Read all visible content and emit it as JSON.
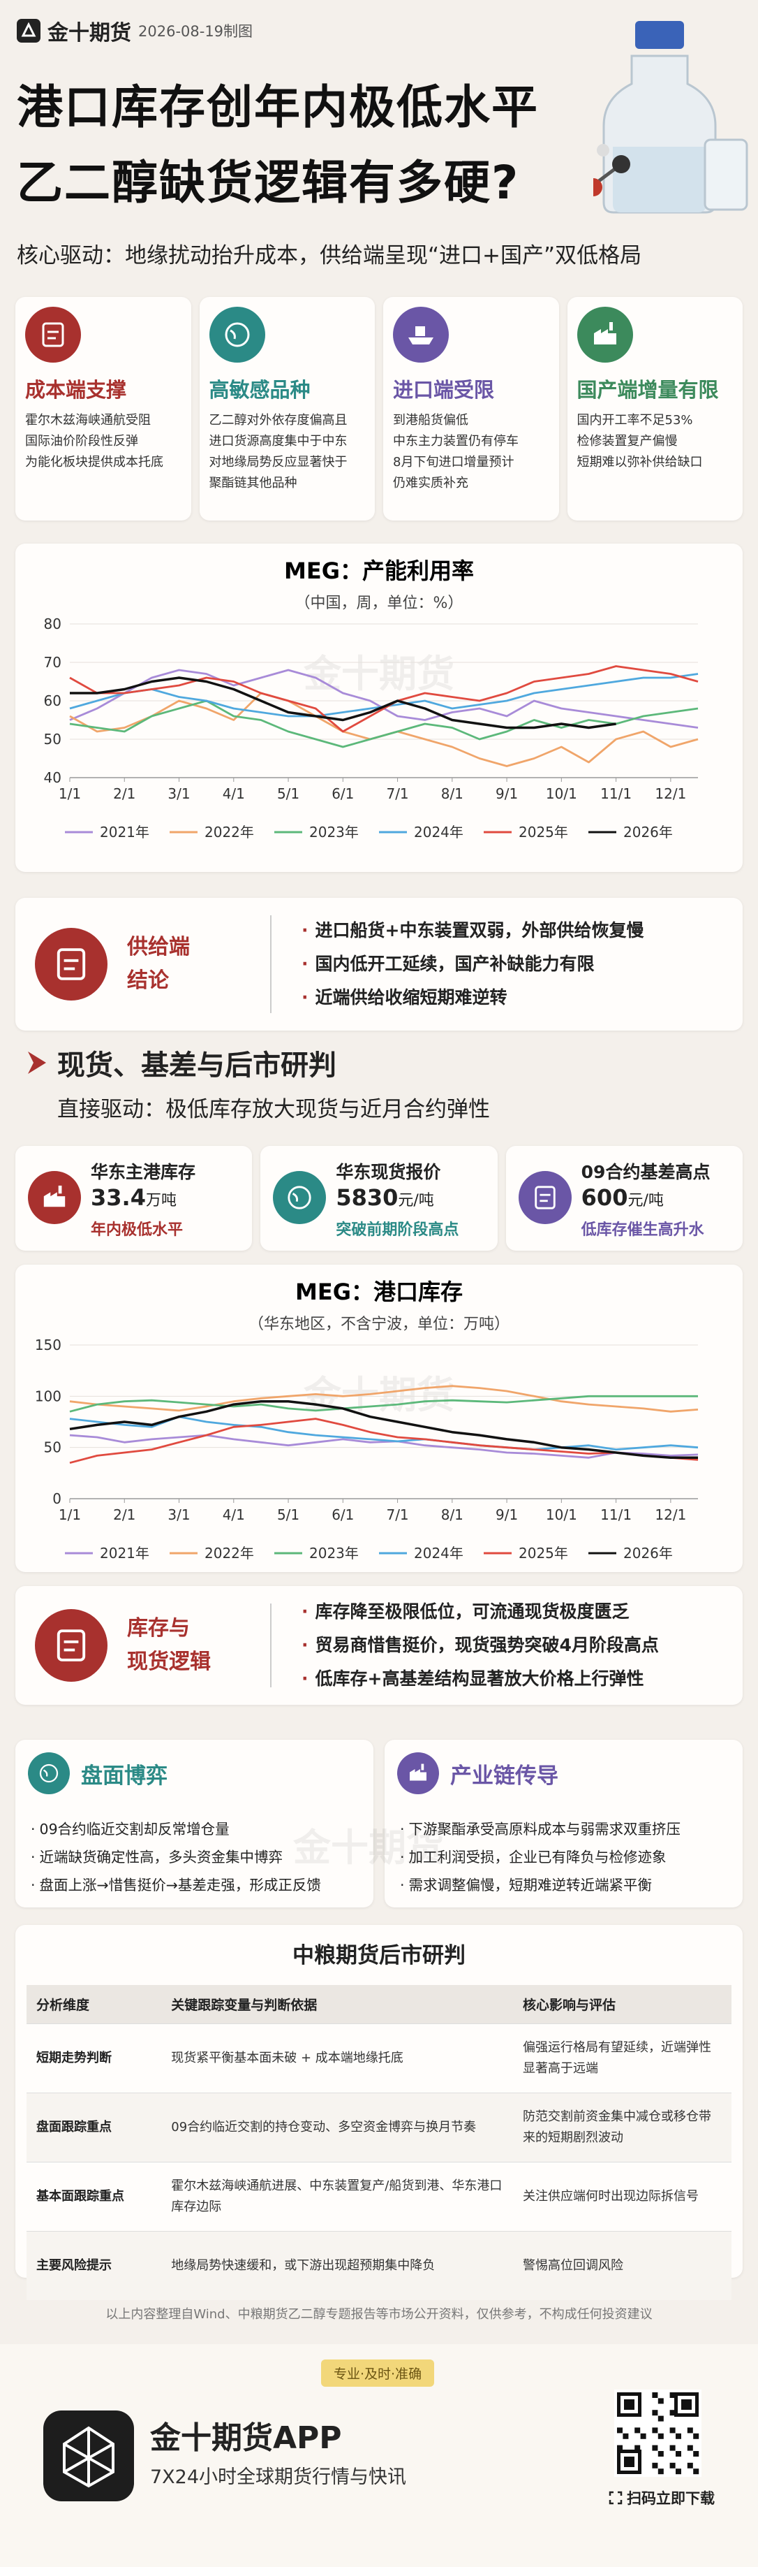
{
  "header": {
    "brand": "金十期货",
    "date": "2026-08-19制图",
    "title_lines": [
      "港口库存创年内极低水平",
      "乙二醇缺货逻辑有多硬?"
    ],
    "subtitle": "核心驱动：地缘扰动抬升成本，供给端呈现“进口+国产”双低格局"
  },
  "cards": [
    {
      "title": "成本端支撑",
      "color": "#a8312e",
      "lines": [
        "霍尔木兹海峡通航受阻",
        "国际油价阶段性反弹",
        "为能化板块提供成本托底"
      ]
    },
    {
      "title": "高敏感品种",
      "color": "#2b8a86",
      "lines": [
        "乙二醇对外依存度偏高且",
        "进口货源高度集中于中东",
        "对地缘局势反应显著快于",
        "聚酯链其他品种"
      ]
    },
    {
      "title": "进口端受限",
      "color": "#6a56a6",
      "lines": [
        "到港船货偏低",
        "中东主力装置仍有停车",
        "8月下旬进口增量预计",
        "仍难实质补充"
      ]
    },
    {
      "title": "国产端增量有限",
      "color": "#3c8a5c",
      "lines": [
        "国内开工率不足53%",
        "检修装置复产偏慢",
        "短期难以弥补供给缺口"
      ]
    }
  ],
  "watermark": "金十期货",
  "chart_data": [
    {
      "type": "line",
      "title": "MEG：产能利用率",
      "subtitle": "（中国，周，单位：%）",
      "categories": [
        "1/1",
        null,
        "2/1",
        null,
        "3/1",
        null,
        "4/1",
        null,
        "5/1",
        null,
        "6/1",
        null,
        "7/1",
        null,
        "8/1",
        null,
        "9/1",
        null,
        "10/1",
        null,
        "11/1",
        null,
        "12/1",
        null
      ],
      "ylim": [
        40,
        80
      ],
      "yticks": [
        40,
        50,
        60,
        70,
        80
      ],
      "grid": true,
      "legend": "bottom",
      "series": [
        {
          "name": "2021年",
          "color": "#a88bd8",
          "values": [
            55,
            58,
            62,
            66,
            68,
            67,
            64,
            66,
            68,
            66,
            62,
            60,
            56,
            55,
            57,
            58,
            56,
            60,
            58,
            57,
            56,
            55,
            54,
            53
          ]
        },
        {
          "name": "2022年",
          "color": "#f0a56a",
          "values": [
            56,
            52,
            53,
            56,
            60,
            58,
            55,
            62,
            60,
            56,
            52,
            50,
            52,
            50,
            48,
            45,
            43,
            45,
            48,
            44,
            50,
            52,
            48,
            50
          ]
        },
        {
          "name": "2023年",
          "color": "#5cb87a",
          "values": [
            54,
            53,
            52,
            56,
            58,
            60,
            56,
            55,
            52,
            50,
            48,
            50,
            52,
            54,
            53,
            50,
            52,
            55,
            53,
            55,
            54,
            56,
            57,
            58
          ]
        },
        {
          "name": "2024年",
          "color": "#4fa8de",
          "values": [
            58,
            60,
            62,
            63,
            61,
            60,
            58,
            57,
            56,
            56,
            57,
            58,
            59,
            60,
            58,
            59,
            60,
            62,
            63,
            64,
            65,
            66,
            66,
            67
          ]
        },
        {
          "name": "2025年",
          "color": "#e04a3f",
          "values": [
            66,
            62,
            62,
            63,
            64,
            66,
            65,
            62,
            60,
            58,
            52,
            56,
            60,
            62,
            61,
            60,
            62,
            65,
            66,
            67,
            69,
            68,
            67,
            65
          ]
        },
        {
          "name": "2026年",
          "color": "#111111",
          "values": [
            62,
            62,
            63,
            65,
            66,
            65,
            63,
            60,
            57,
            56,
            55,
            57,
            60,
            58,
            55,
            54,
            53,
            53,
            54,
            53,
            54,
            null,
            null,
            null
          ]
        }
      ]
    },
    {
      "type": "line",
      "title": "MEG：港口库存",
      "subtitle": "（华东地区，不含宁波，单位：万吨）",
      "categories": [
        "1/1",
        null,
        "2/1",
        null,
        "3/1",
        null,
        "4/1",
        null,
        "5/1",
        null,
        "6/1",
        null,
        "7/1",
        null,
        "8/1",
        null,
        "9/1",
        null,
        "10/1",
        null,
        "11/1",
        null,
        "12/1",
        null
      ],
      "ylim": [
        0,
        150
      ],
      "yticks": [
        0,
        50,
        100,
        150
      ],
      "grid": true,
      "legend": "bottom",
      "series": [
        {
          "name": "2021年",
          "color": "#a88bd8",
          "values": [
            62,
            60,
            55,
            58,
            60,
            62,
            58,
            55,
            52,
            55,
            58,
            55,
            56,
            52,
            50,
            48,
            45,
            44,
            42,
            40,
            45,
            44,
            42,
            43
          ]
        },
        {
          "name": "2022年",
          "color": "#f0a56a",
          "values": [
            95,
            92,
            90,
            88,
            86,
            90,
            95,
            98,
            100,
            102,
            100,
            102,
            105,
            108,
            110,
            108,
            105,
            100,
            95,
            92,
            90,
            88,
            85,
            87
          ]
        },
        {
          "name": "2023年",
          "color": "#5cb87a",
          "values": [
            85,
            92,
            95,
            96,
            94,
            92,
            90,
            92,
            88,
            86,
            88,
            90,
            92,
            95,
            96,
            95,
            94,
            96,
            98,
            100,
            100,
            100,
            100,
            100
          ]
        },
        {
          "name": "2024年",
          "color": "#4fa8de",
          "values": [
            78,
            75,
            72,
            70,
            80,
            75,
            72,
            70,
            65,
            62,
            60,
            58,
            56,
            58,
            55,
            52,
            50,
            48,
            50,
            52,
            48,
            50,
            52,
            50
          ]
        },
        {
          "name": "2025年",
          "color": "#e04a3f",
          "values": [
            35,
            42,
            45,
            48,
            55,
            62,
            70,
            72,
            75,
            78,
            72,
            65,
            60,
            58,
            55,
            52,
            50,
            48,
            46,
            44,
            45,
            42,
            40,
            38
          ]
        },
        {
          "name": "2026年",
          "color": "#111111",
          "values": [
            68,
            72,
            75,
            72,
            80,
            85,
            92,
            95,
            95,
            92,
            88,
            80,
            75,
            70,
            65,
            62,
            58,
            55,
            50,
            48,
            45,
            42,
            40,
            40
          ]
        }
      ]
    }
  ],
  "supply_conclusion": {
    "label_lines": [
      "供给端",
      "结论"
    ],
    "bullets": [
      "进口船货+中东装置双弱，外部供给恢复慢",
      "国内低开工延续，国产补缺能力有限",
      "近端供给收缩短期难逆转"
    ]
  },
  "section": {
    "title": "现货、基差与后市研判",
    "driver": "直接驱动：极低库存放大现货与近月合约弹性"
  },
  "stats": [
    {
      "label": "华东主港库存",
      "value": "33.4",
      "unit": "万吨",
      "note": "年内极低水平",
      "color": "#a8312e"
    },
    {
      "label": "华东现货报价",
      "value": "5830",
      "unit": "元/吨",
      "note": "突破前期阶段高点",
      "color": "#2b8a86"
    },
    {
      "label": "09合约基差高点",
      "value": "600",
      "unit": "元/吨",
      "note": "低库存催生高升水",
      "color": "#6a56a6"
    }
  ],
  "inventory_conclusion": {
    "label_lines": [
      "库存与",
      "现货逻辑"
    ],
    "bullets": [
      "库存降至极限低位，可流通现货极度匮乏",
      "贸易商惜售挺价，现货强势突破4月阶段高点",
      "低库存+高基差结构显著放大价格上行弹性"
    ]
  },
  "panels": [
    {
      "title": "盘面博弈",
      "color": "#2b8a86",
      "bullets": [
        "09合约临近交割却反常增仓量",
        "近端缺货确定性高，多头资金集中博弈",
        "盘面上涨→惜售挺价→基差走强，形成正反馈"
      ]
    },
    {
      "title": "产业链传导",
      "color": "#6a56a6",
      "bullets": [
        "下游聚酯承受高原料成本与弱需求双重挤压",
        "加工利润受损，企业已有降负与检修迹象",
        "需求调整偏慢，短期难逆转近端紧平衡"
      ]
    }
  ],
  "table": {
    "title": "中粮期货后市研判",
    "header": [
      "分析维度",
      "关键跟踪变量与判断依据",
      "核心影响与评估"
    ],
    "rows": [
      [
        "短期走势判断",
        "现货紧平衡基本面未破 + 成本端地缘托底",
        "偏强运行格局有望延续，近端弹性显著高于远端"
      ],
      [
        "盘面跟踪重点",
        "09合约临近交割的持仓变动、多空资金博弈与换月节奏",
        "防范交割前资金集中减仓或移仓带来的短期剧烈波动"
      ],
      [
        "基本面跟踪重点",
        "霍尔木兹海峡通航进展、中东装置复产/船货到港、华东港口库存边际",
        "关注供应端何时出现边际拆信号"
      ],
      [
        "主要风险提示",
        "地缘局势快速缓和，或下游出现超预期集中降负",
        "警惕高位回调风险"
      ]
    ]
  },
  "disclaimer": "以上内容整理自Wind、中粮期货乙二醇专题报告等市场公开资料，仅供参考，不构成任何投资建议",
  "footer": {
    "tagline": "专业·及时·准确",
    "app_name": "金十期货APP",
    "app_desc": "7X24小时全球期货行情与快讯",
    "qr_label": "扫码立即下载"
  }
}
